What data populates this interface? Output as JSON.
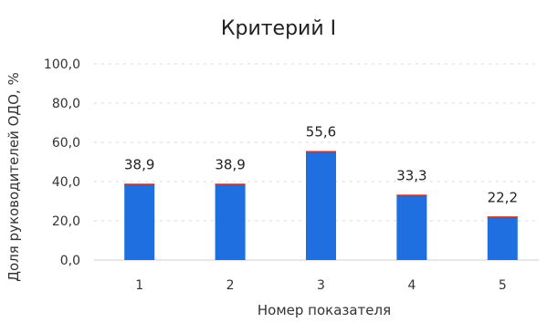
{
  "chart_data": {
    "type": "bar",
    "title": "Критерий I",
    "xlabel": "Номер показателя",
    "ylabel": "Доля руководителей ОДО, %",
    "categories": [
      "1",
      "2",
      "3",
      "4",
      "5"
    ],
    "values": [
      38.9,
      38.9,
      55.6,
      33.3,
      22.2
    ],
    "data_labels": [
      "38,9",
      "38,9",
      "55,6",
      "33,3",
      "22,2"
    ],
    "ylim": [
      0,
      100
    ],
    "yticks": [
      "0,0",
      "20,0",
      "40,0",
      "60,0",
      "80,0",
      "100,0"
    ],
    "ytick_values": [
      0,
      20,
      40,
      60,
      80,
      100
    ],
    "grid": true,
    "bar_color": "#1f6fe0",
    "bar_top_color": "#c0392b"
  }
}
